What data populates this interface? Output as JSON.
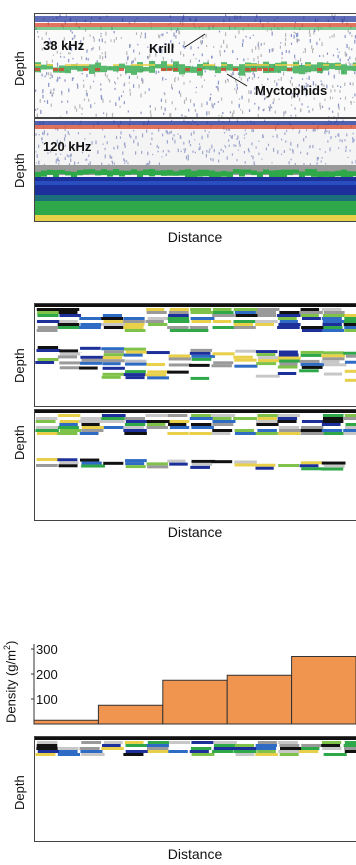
{
  "figure_a": {
    "ylabel": "Depth",
    "xlabel": "Distance",
    "panel_top_label": "38 kHz",
    "panel_bottom_label": "120 kHz",
    "annotations": [
      "Krill",
      "Myctophids"
    ]
  },
  "figure_b": {
    "ylabel": "Depth",
    "xlabel": "Distance"
  },
  "figure_c": {
    "ylabel_density": "Density (g/m",
    "ylabel_density_sup": "2",
    "ylabel_density_end": ")",
    "ylabel_depth": "Depth",
    "xlabel": "Distance"
  },
  "chart_data": [
    {
      "type": "heatmap",
      "panel": "38 kHz echogram",
      "xlabel": "Distance",
      "ylabel": "Depth",
      "annotations": [
        "Krill",
        "Myctophids"
      ]
    },
    {
      "type": "heatmap",
      "panel": "120 kHz echogram",
      "xlabel": "Distance",
      "ylabel": "Depth"
    },
    {
      "type": "bar",
      "ylabel": "Density (g/m2)",
      "yticks": [
        100,
        200,
        300
      ],
      "ylim": [
        0,
        320
      ],
      "values": [
        15,
        75,
        175,
        195,
        270
      ],
      "color": "#f0954f"
    }
  ],
  "colors": {
    "bar": "#f0954f",
    "echo_red": "#d8452b",
    "echo_yellow": "#e8d04a",
    "echo_green": "#2fa84a",
    "echo_blue": "#1c2f9a",
    "echo_gray": "#9a9a9a"
  }
}
